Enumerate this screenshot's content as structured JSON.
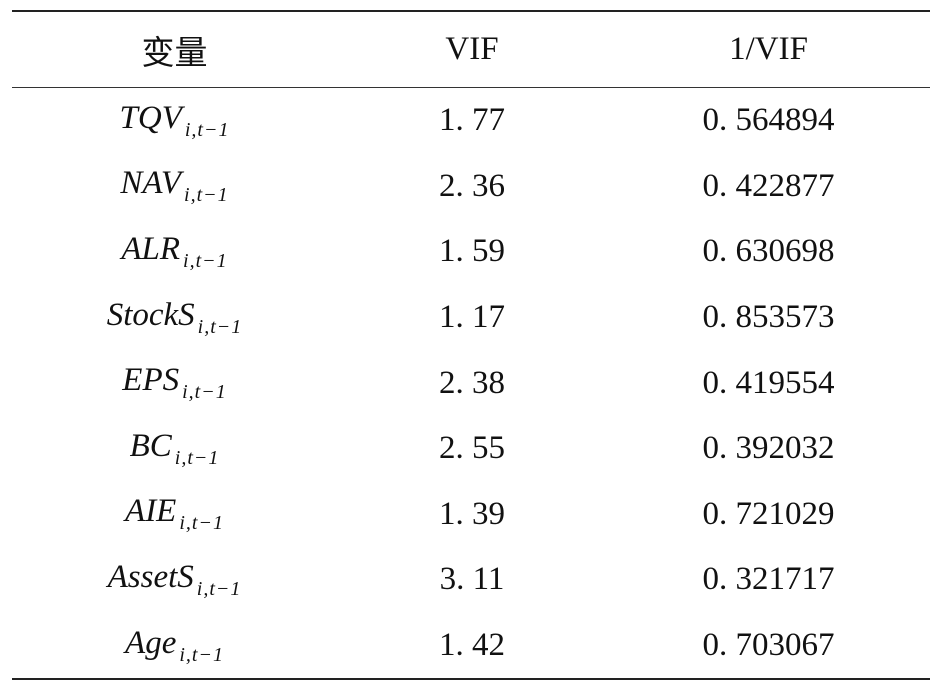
{
  "table": {
    "header": [
      "变量",
      "VIF",
      "1/VIF"
    ],
    "rows": [
      [
        {
          "name": "TQV",
          "sub": "i,t−1"
        },
        "1. 77",
        "0. 564894"
      ],
      [
        {
          "name": "NAV",
          "sub": "i,t−1"
        },
        "2. 36",
        "0. 422877"
      ],
      [
        {
          "name": "ALR",
          "sub": "i,t−1"
        },
        "1. 59",
        "0. 630698"
      ],
      [
        {
          "name": "StockS",
          "sub": "i,t−1"
        },
        "1. 17",
        "0. 853573"
      ],
      [
        {
          "name": "EPS",
          "sub": "i,t−1"
        },
        "2. 38",
        "0. 419554"
      ],
      [
        {
          "name": "BC",
          "sub": "i,t−1"
        },
        "2. 55",
        "0. 392032"
      ],
      [
        {
          "name": "AIE",
          "sub": "i,t−1"
        },
        "1. 39",
        "0. 721029"
      ],
      [
        {
          "name": "AssetS",
          "sub": "i,t−1"
        },
        "3. 11",
        "0. 321717"
      ],
      [
        {
          "name": "Age",
          "sub": "i,t−1"
        },
        "1. 42",
        "0. 703067"
      ]
    ]
  }
}
